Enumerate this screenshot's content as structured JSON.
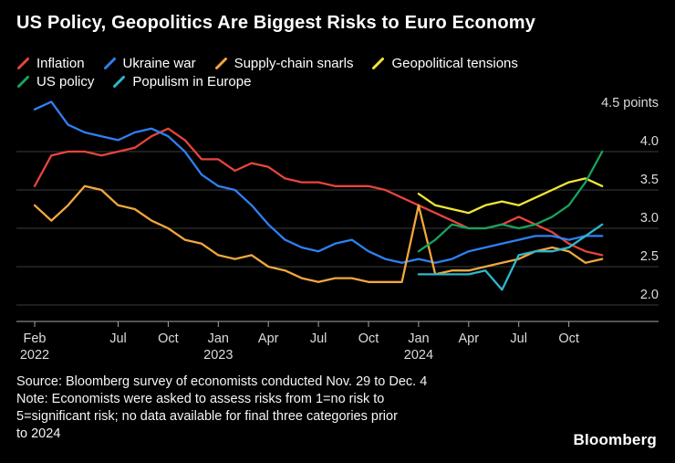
{
  "title": "US Policy, Geopolitics Are Biggest Risks to Euro Economy",
  "logo": "Bloomberg",
  "source_lines": [
    "Source: Bloomberg survey of economists conducted Nov. 29 to Dec. 4",
    "Note: Economists were asked to assess risks from 1=no risk to",
    "5=significant risk; no data available for final three categories prior",
    "to 2024"
  ],
  "colors": {
    "background": "#000000",
    "title_text": "#ffffff",
    "axis_text": "#dcdcdc",
    "gridline": "#3d3d3d",
    "axis_line": "#a6a6a6"
  },
  "legend_rows": [
    [
      "Inflation",
      "Ukraine war",
      "Supply-chain snarls",
      "Geopolitical tensions"
    ],
    [
      "US policy",
      "Populism in Europe"
    ]
  ],
  "chart_data": {
    "type": "line",
    "title": "US Policy, Geopolitics Are Biggest Risks to Euro Economy",
    "ylabel": "risk points (1=no risk to 5=significant risk)",
    "ylim": [
      2.0,
      4.5
    ],
    "grid": "horizontal",
    "legend_position": "top",
    "y_ticks": [
      {
        "value": 4.5,
        "label": "4.5 points",
        "gridline": false
      },
      {
        "value": 4.0,
        "label": "4.0",
        "gridline": true
      },
      {
        "value": 3.5,
        "label": "3.5",
        "gridline": true
      },
      {
        "value": 3.0,
        "label": "3.0",
        "gridline": true
      },
      {
        "value": 2.5,
        "label": "2.5",
        "gridline": true
      },
      {
        "value": 2.0,
        "label": "2.0",
        "gridline": true
      }
    ],
    "x_axis": {
      "unit": "monthly surveys, Feb 2022 to Dec 2024",
      "ticks": [
        {
          "label": "Feb",
          "year": "2022",
          "month_index": 0
        },
        {
          "label": "Jul",
          "month_index": 5
        },
        {
          "label": "Oct",
          "month_index": 8
        },
        {
          "label": "Jan",
          "year": "2023",
          "month_index": 11
        },
        {
          "label": "Apr",
          "month_index": 14
        },
        {
          "label": "Jul",
          "month_index": 17
        },
        {
          "label": "Oct",
          "month_index": 20
        },
        {
          "label": "Jan",
          "year": "2024",
          "month_index": 23
        },
        {
          "label": "Apr",
          "month_index": 26
        },
        {
          "label": "Jul",
          "month_index": 29
        },
        {
          "label": "Oct",
          "month_index": 32
        }
      ]
    },
    "series": [
      {
        "name": "Inflation",
        "color": "#e6453c",
        "start_month_index": 0,
        "values": [
          3.55,
          3.95,
          4.0,
          4.0,
          3.95,
          4.0,
          4.05,
          4.2,
          4.3,
          4.15,
          3.9,
          3.9,
          3.75,
          3.85,
          3.8,
          3.65,
          3.6,
          3.6,
          3.55,
          3.55,
          3.55,
          3.5,
          3.4,
          3.3,
          3.2,
          3.1,
          3.0,
          3.0,
          3.05,
          3.15,
          3.05,
          2.95,
          2.8,
          2.7,
          2.65
        ]
      },
      {
        "name": "Ukraine war",
        "color": "#2f80f2",
        "start_month_index": 0,
        "values": [
          4.55,
          4.65,
          4.35,
          4.25,
          4.2,
          4.15,
          4.25,
          4.3,
          4.2,
          4.0,
          3.7,
          3.55,
          3.5,
          3.3,
          3.05,
          2.85,
          2.75,
          2.7,
          2.8,
          2.85,
          2.7,
          2.6,
          2.55,
          2.6,
          2.55,
          2.6,
          2.7,
          2.75,
          2.8,
          2.85,
          2.9,
          2.9,
          2.85,
          2.9,
          2.9
        ]
      },
      {
        "name": "Supply-chain snarls",
        "color": "#f2a73e",
        "start_month_index": 0,
        "values": [
          3.3,
          3.1,
          3.3,
          3.55,
          3.5,
          3.3,
          3.25,
          3.1,
          3.0,
          2.85,
          2.8,
          2.65,
          2.6,
          2.65,
          2.5,
          2.45,
          2.35,
          2.3,
          2.35,
          2.35,
          2.3,
          2.3,
          2.3,
          3.3,
          2.4,
          2.45,
          2.45,
          2.5,
          2.55,
          2.6,
          2.7,
          2.75,
          2.7,
          2.55,
          2.6
        ]
      },
      {
        "name": "Geopolitical tensions",
        "color": "#f2e635",
        "start_month_index": 23,
        "values": [
          3.45,
          3.3,
          3.25,
          3.2,
          3.3,
          3.35,
          3.3,
          3.4,
          3.5,
          3.6,
          3.65,
          3.55
        ]
      },
      {
        "name": "US policy",
        "color": "#17a35e",
        "start_month_index": 23,
        "values": [
          2.7,
          2.85,
          3.05,
          3.0,
          3.0,
          3.05,
          3.0,
          3.05,
          3.15,
          3.3,
          3.6,
          4.0
        ]
      },
      {
        "name": "Populism in Europe",
        "color": "#30b7cc",
        "start_month_index": 23,
        "values": [
          2.4,
          2.4,
          2.4,
          2.4,
          2.45,
          2.2,
          2.65,
          2.7,
          2.7,
          2.75,
          2.9,
          3.05
        ]
      }
    ]
  }
}
